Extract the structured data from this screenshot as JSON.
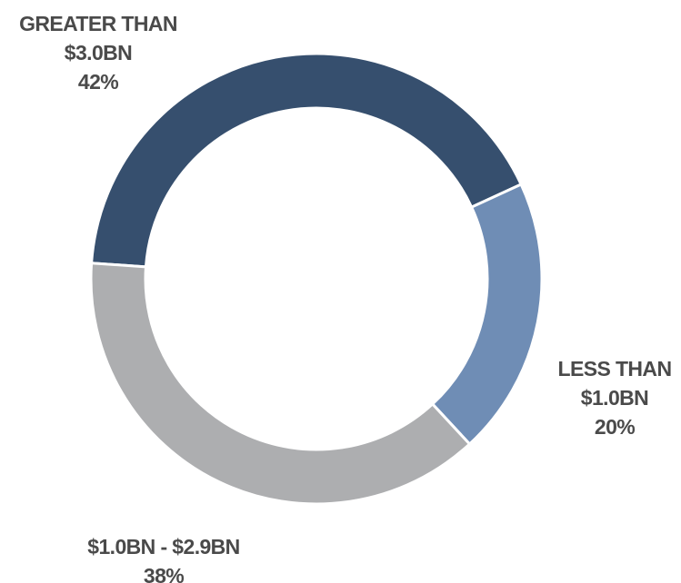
{
  "chart_data": {
    "type": "donut",
    "categories": [
      "GREATER THAN $3.0BN",
      "LESS THAN $1.0BN",
      "$1.0BN - $2.9BN"
    ],
    "values": [
      42,
      20,
      38
    ],
    "value_labels": [
      "42%",
      "20%",
      "38%"
    ],
    "colors": [
      "#364f6e",
      "#6f8db5",
      "#adaeb0"
    ]
  }
}
